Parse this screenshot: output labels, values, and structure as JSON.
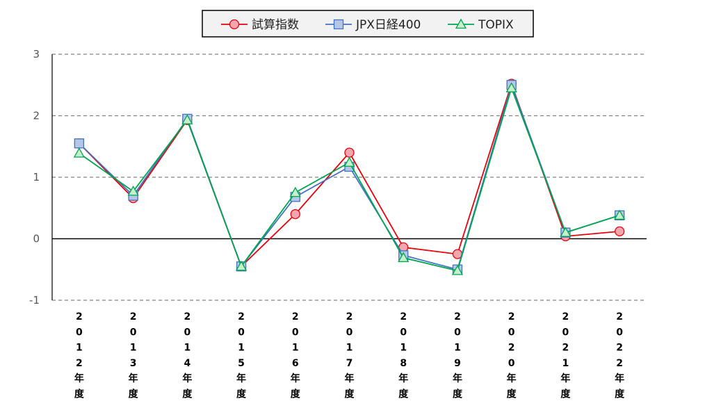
{
  "chart_data": {
    "type": "line",
    "title": "",
    "xlabel": "",
    "ylabel": "",
    "categories": [
      "2012年度",
      "2013年度",
      "2014年度",
      "2015年度",
      "2016年度",
      "2017年度",
      "2018年度",
      "2019年度",
      "2020年度",
      "2021年度",
      "2022年度"
    ],
    "ylim": [
      -1,
      3
    ],
    "yticks": [
      "3",
      "2",
      "1",
      "0",
      "-1"
    ],
    "grid": "horizontal dashed",
    "legend_position": "top-center",
    "series": [
      {
        "name": "試算指数",
        "color": "#e8000b",
        "fill": "#f4a6ae",
        "marker": "circle",
        "values": [
          1.55,
          0.66,
          1.93,
          -0.45,
          0.4,
          1.4,
          -0.14,
          -0.25,
          2.52,
          0.04,
          0.12
        ]
      },
      {
        "name": "JPX日経400",
        "color": "#4472c4",
        "fill": "#b4c7e7",
        "marker": "square",
        "values": [
          1.55,
          0.7,
          1.95,
          -0.45,
          0.68,
          1.17,
          -0.27,
          -0.5,
          2.5,
          0.1,
          0.38
        ]
      },
      {
        "name": "TOPIX",
        "color": "#00a550",
        "fill": "#c6efce",
        "marker": "triangle",
        "values": [
          1.39,
          0.77,
          1.93,
          -0.45,
          0.75,
          1.24,
          -0.31,
          -0.52,
          2.45,
          0.1,
          0.38
        ]
      }
    ]
  }
}
